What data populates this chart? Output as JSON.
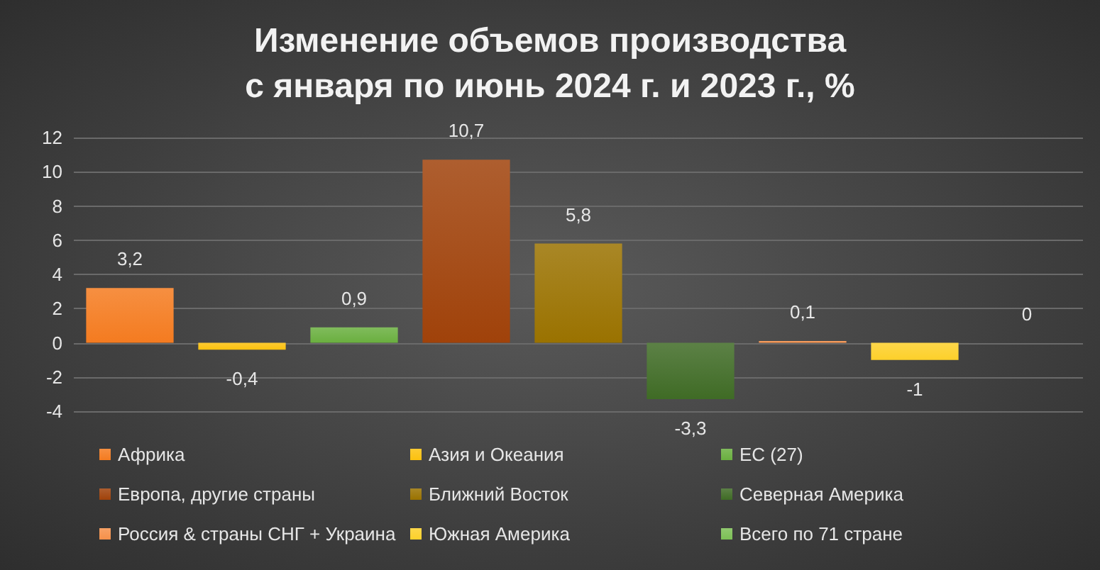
{
  "chart_data": {
    "type": "bar",
    "title": "Изменение объемов производства\nс января по июнь 2024 г. и 2023 г., %",
    "categories": [
      null,
      null,
      null,
      null,
      null,
      null,
      null,
      null,
      null
    ],
    "stacked": true,
    "series": [
      {
        "name": "Африка",
        "color": "#f47b20",
        "values": [
          3.2,
          null,
          null,
          null,
          null,
          null,
          null,
          null,
          null
        ],
        "value_labels": [
          "3,2",
          null,
          null,
          null,
          null,
          null,
          null,
          null,
          null
        ]
      },
      {
        "name": "Азия и Океания",
        "color": "#fcc10e",
        "values": [
          null,
          -0.4,
          null,
          null,
          null,
          null,
          null,
          null,
          null
        ],
        "value_labels": [
          null,
          "-0,4",
          null,
          null,
          null,
          null,
          null,
          null,
          null
        ]
      },
      {
        "name": "ЕС (27)",
        "color": "#6aaf3f",
        "values": [
          null,
          null,
          0.9,
          null,
          null,
          null,
          null,
          null,
          null
        ],
        "value_labels": [
          null,
          null,
          "0,9",
          null,
          null,
          null,
          null,
          null,
          null
        ]
      },
      {
        "name": "Европа, другие страны",
        "color": "#a0420a",
        "values": [
          null,
          null,
          null,
          10.7,
          null,
          null,
          null,
          null,
          null
        ],
        "value_labels": [
          null,
          null,
          null,
          "10,7",
          null,
          null,
          null,
          null,
          null
        ]
      },
      {
        "name": "Ближний Восток",
        "color": "#9a7200",
        "values": [
          null,
          null,
          null,
          null,
          5.8,
          null,
          null,
          null,
          null
        ],
        "value_labels": [
          null,
          null,
          null,
          null,
          "5,8",
          null,
          null,
          null,
          null
        ]
      },
      {
        "name": "Северная Америка",
        "color": "#3f6b25",
        "values": [
          null,
          null,
          null,
          null,
          null,
          -3.3,
          null,
          null,
          null
        ],
        "value_labels": [
          null,
          null,
          null,
          null,
          null,
          "-3,3",
          null,
          null,
          null
        ]
      },
      {
        "name": "Россия & страны СНГ + Украина",
        "color": "#f5904a",
        "values": [
          null,
          null,
          null,
          null,
          null,
          null,
          0.1,
          null,
          null
        ],
        "value_labels": [
          null,
          null,
          null,
          null,
          null,
          null,
          "0,1",
          null,
          null
        ]
      },
      {
        "name": "Южная Америка",
        "color": "#fdd02a",
        "values": [
          null,
          null,
          null,
          null,
          null,
          null,
          null,
          -1,
          null
        ],
        "value_labels": [
          null,
          null,
          null,
          null,
          null,
          null,
          null,
          "-1",
          null
        ]
      },
      {
        "name": "Всего по 71 стране",
        "color": "#7cbf55",
        "values": [
          null,
          null,
          null,
          null,
          null,
          null,
          null,
          null,
          0
        ],
        "value_labels": [
          null,
          null,
          null,
          null,
          null,
          null,
          null,
          null,
          "0"
        ]
      }
    ],
    "ylim": [
      -4,
      12
    ],
    "yticks": [
      -4,
      -2,
      0,
      2,
      4,
      6,
      8,
      10,
      12
    ],
    "grid": "y",
    "legend": "bottom"
  }
}
